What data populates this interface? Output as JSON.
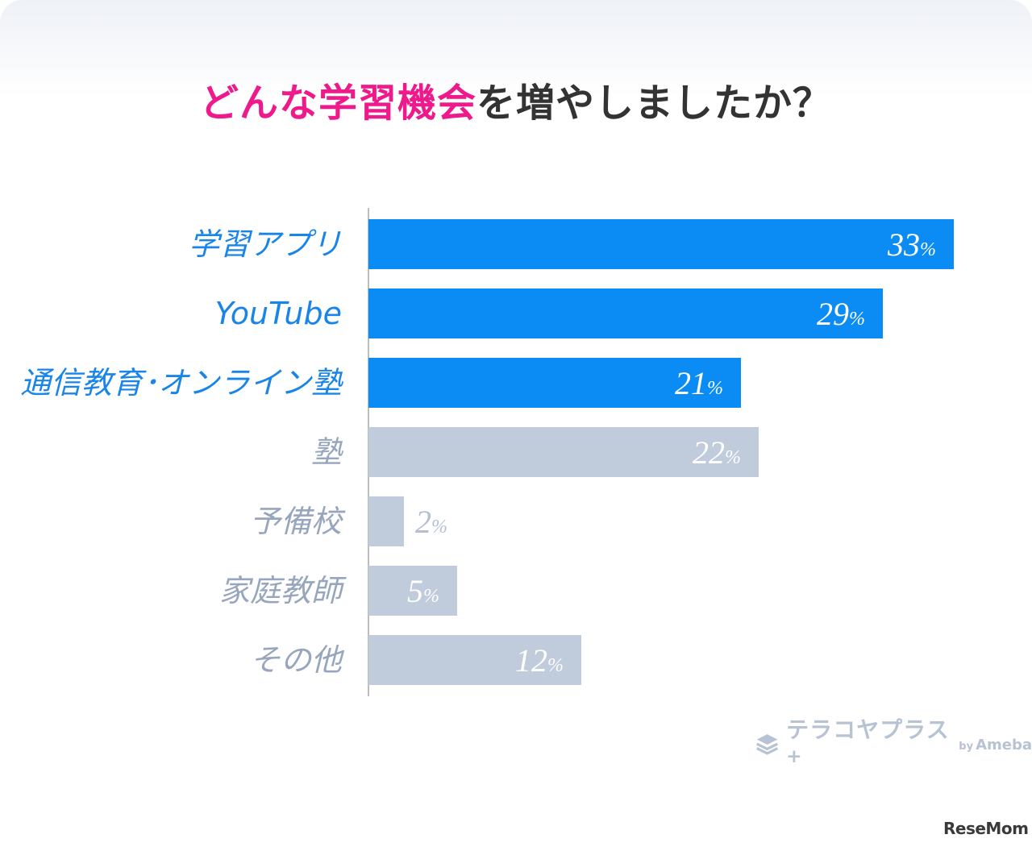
{
  "title": {
    "highlight": "どんな学習機会",
    "rest": "を増やしましたか？"
  },
  "colors": {
    "highlight": "#ee1a8c",
    "primary_bar": "#0a8cf4",
    "secondary_bar": "#c0cbdc",
    "primary_label": "#1a85e8",
    "secondary_label": "#97a6bd"
  },
  "chart_data": {
    "type": "bar",
    "orientation": "horizontal",
    "title": "どんな学習機会を増やしましたか？",
    "categories": [
      "学習アプリ",
      "YouTube",
      "通信教育･オンライン塾",
      "塾",
      "予備校",
      "家庭教師",
      "その他"
    ],
    "values": [
      33,
      29,
      21,
      22,
      2,
      5,
      12
    ],
    "unit": "%",
    "highlighted": [
      true,
      true,
      true,
      false,
      false,
      false,
      false
    ],
    "xlim": [
      0,
      33
    ],
    "grid": false
  },
  "brand": {
    "name": "テラコヤプラス",
    "plus": "+",
    "by": "by",
    "ameba": "Ameba"
  },
  "credit": "ReseMom"
}
